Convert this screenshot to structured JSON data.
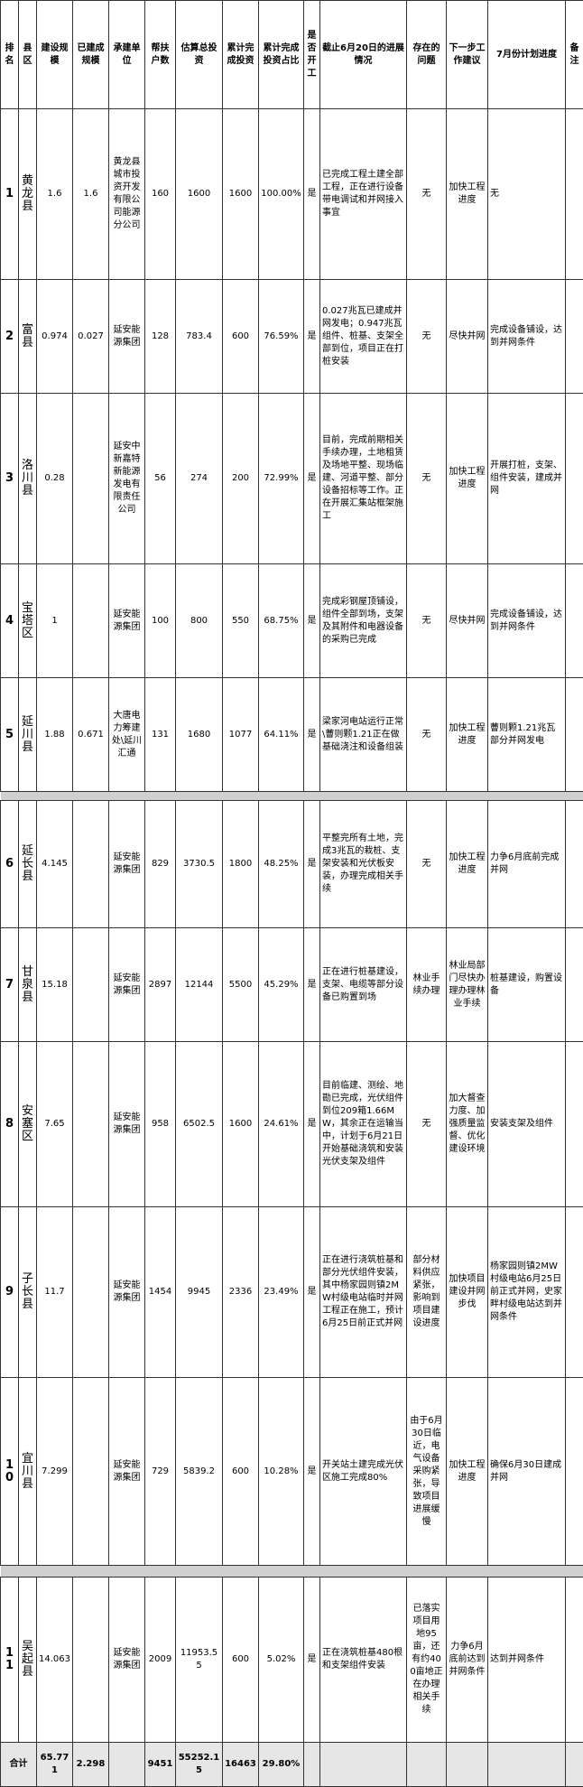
{
  "header": {
    "columns": [
      "排名",
      "县区",
      "建设规模",
      "已建成规模",
      "承建单位",
      "帮扶户数",
      "估算总投资",
      "累计完成投资",
      "累计完成投资占比",
      "是否开工",
      "截止6月20日的进展情况",
      "存在的问题",
      "下一步工作建议",
      "7月份计划进度",
      "备注"
    ]
  },
  "table": {
    "rows": [
      [
        1,
        "黄龙县",
        1.6,
        1.6,
        "黄龙县城市投资开发有限公司能源分公司",
        160,
        1600,
        1600,
        "100.00%",
        "是",
        "已完成工程土建全部工程，正在进行设备带电调试和并网接入事宜",
        "无",
        "加快工程进度",
        "无",
        null
      ],
      [
        2,
        "富县",
        0.974,
        0.027,
        "延安能源集团",
        128,
        783.4,
        600,
        "76.59%",
        "是",
        "0.027兆瓦已建成并网发电；0.947兆瓦组件、桩基、支架全部到位，项目正在打桩安装",
        "无",
        "尽快并网",
        "完成设备铺设，达到并网条件",
        null
      ],
      [
        3,
        "洛川县",
        0.28,
        null,
        "延安中新嘉特新能源发电有限责任公司",
        56,
        274,
        200,
        "72.99%",
        "是",
        "目前，完成前期相关手续办理，土地租赁及场地平整、现场临建、河道平整、部分设备招标等工作。正在开展汇集站框架施工",
        "无",
        "加快工程进度",
        "开展打桩，支架、组件安装，建成并网",
        null
      ],
      [
        4,
        "宝塔区",
        1,
        null,
        "延安能源集团",
        100,
        800,
        550,
        "68.75%",
        "是",
        "完成彩钢屋顶铺设，组件全部到场，支架及其附件和电器设备的采购已完成",
        "无",
        "尽快并网",
        "完成设备铺设，达到并网条件",
        null
      ],
      [
        5,
        "延川县",
        1.88,
        0.671,
        "大唐电力筹建处\\延川汇通",
        131,
        1680,
        1077,
        "64.11%",
        "是",
        "梁家河电站运行正常\\蓸则颗1.21正在做基础浇注和设备组装",
        "无",
        "加快工程进度",
        "蓸则颗1.21兆瓦部分并网发电",
        null
      ],
      [
        6,
        "延长县",
        4.145,
        null,
        "延安能源集团",
        829,
        3730.5,
        1800,
        "48.25%",
        "是",
        "平整完所有土地，完成3兆瓦的栽桩、支架安装和光伏板安装，办理完成相关手续",
        "无",
        "加快工程进度",
        "力争6月底前完成并网",
        null
      ],
      [
        7,
        "甘泉县",
        15.18,
        null,
        "延安能源集团",
        2897,
        12144,
        5500,
        "45.29%",
        "是",
        "正在进行桩基建设，支架、电缆等部分设备已购置到场",
        "林业手续办理",
        "林业局部门尽快办理办理林业手续",
        "桩基建设，购置设备",
        null
      ],
      [
        8,
        "安塞区",
        7.65,
        null,
        "延安能源集团",
        958,
        6502.5,
        1600,
        "24.61%",
        "是",
        "目前临建、测绘、地勘已完成，光伏组件到位209箱1.66MW，其余正在运输当中，计划于6月21日开始基础浇筑和安装光伏支架及组件",
        "无",
        "加大督查力度、加强质量监督、优化建设环境",
        "安装支架及组件",
        null
      ],
      [
        9,
        "子长县",
        11.7,
        null,
        "延安能源集团",
        1454,
        9945,
        2336,
        "23.49%",
        "是",
        "正在进行浇筑桩基和部分光伏组件安装，其中杨家园则镇2MW村级电站临时并网工程正在施工，预计6月25日前正式并网",
        "部分材料供应紧张，影响到项目建设进度",
        "加快项目建设并网步伐",
        "杨家园则镇2MW村级电站6月25日前正式并网，史家畔村级电站达到并网条件",
        null
      ],
      [
        10,
        "宜川县",
        7.299,
        null,
        "延安能源集团",
        729,
        5839.2,
        600,
        "10.28%",
        "是",
        "开关站土建完成光伏区施工完成80%",
        "由于6月30日临近，电气设备采购紧张，导致项目进展缓慢",
        "加快工程进度",
        "确保6月30日建成并网",
        null
      ],
      [
        11,
        "吴起县",
        14.063,
        null,
        "延安能源集团",
        2009,
        11953.55,
        600,
        "5.02%",
        "是",
        "正在浇筑桩基480根和支架组件安装",
        "已落实项目用地95亩，还有约400亩地正在办理相关手续",
        "力争6月底前达到并网条件",
        "达到并网条件",
        null
      ]
    ]
  },
  "total": {
    "cells": [
      "合计",
      65.771,
      2.298,
      null,
      9451,
      55252.15,
      16463,
      "29.80%",
      null,
      null,
      null,
      null,
      null,
      null
    ]
  }
}
